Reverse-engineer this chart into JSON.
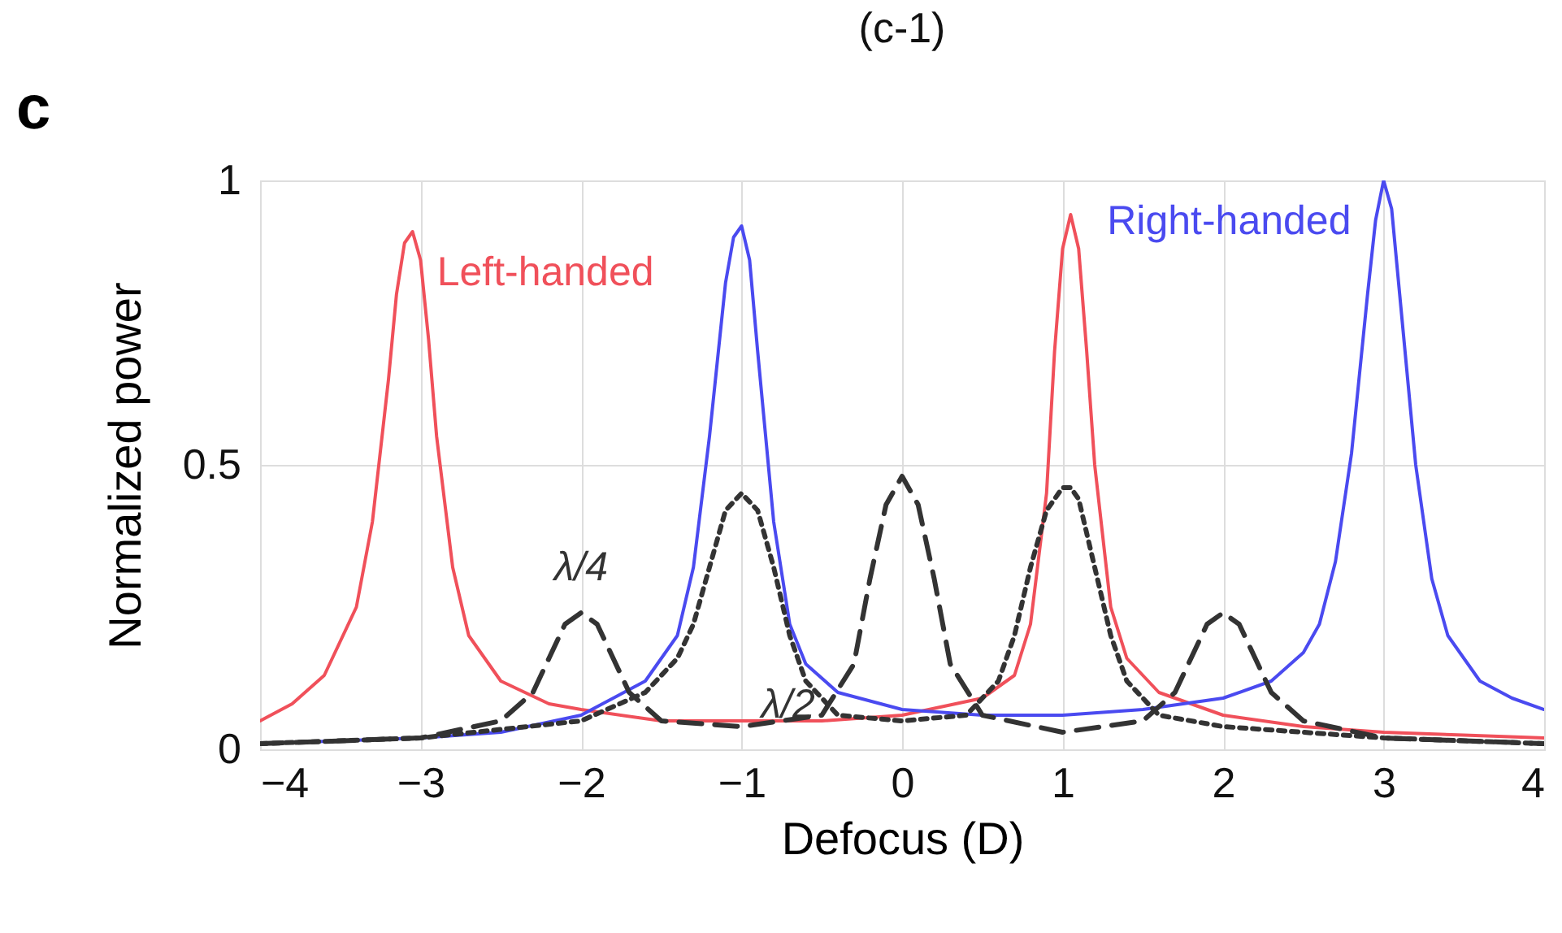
{
  "chart_data": {
    "type": "line",
    "title": "(c-1)",
    "xlabel": "Defocus (D)",
    "ylabel": "Normalized power",
    "annotations": [
      "c"
    ],
    "xlim": [
      -4,
      4
    ],
    "xticks": [
      -4,
      -3,
      -2,
      -1,
      0,
      1,
      2,
      3,
      4
    ],
    "ylim": [
      0,
      1
    ],
    "yticks": [
      0,
      0.5,
      1
    ],
    "grid": true,
    "series": [
      {
        "name": "Left-handed",
        "color": "#f0505a",
        "line_style": "solid",
        "x": [
          -4,
          -3.8,
          -3.6,
          -3.4,
          -3.3,
          -3.2,
          -3.15,
          -3.1,
          -3.05,
          -3.0,
          -2.95,
          -2.9,
          -2.8,
          -2.7,
          -2.5,
          -2.2,
          -2,
          -1.5,
          -1,
          -0.5,
          0,
          0.5,
          0.7,
          0.8,
          0.9,
          0.95,
          1.0,
          1.05,
          1.1,
          1.15,
          1.2,
          1.3,
          1.4,
          1.6,
          2,
          2.5,
          3,
          3.5,
          4
        ],
        "values": [
          0.05,
          0.08,
          0.13,
          0.25,
          0.4,
          0.65,
          0.8,
          0.89,
          0.91,
          0.86,
          0.72,
          0.55,
          0.32,
          0.2,
          0.12,
          0.08,
          0.07,
          0.05,
          0.05,
          0.05,
          0.06,
          0.09,
          0.13,
          0.22,
          0.45,
          0.7,
          0.88,
          0.94,
          0.88,
          0.7,
          0.5,
          0.25,
          0.16,
          0.1,
          0.06,
          0.04,
          0.03,
          0.025,
          0.02
        ]
      },
      {
        "name": "Right-handed",
        "color": "#4a4af0",
        "line_style": "solid",
        "x": [
          -4,
          -3,
          -2.5,
          -2,
          -1.6,
          -1.4,
          -1.3,
          -1.2,
          -1.1,
          -1.05,
          -1.0,
          -0.95,
          -0.9,
          -0.8,
          -0.7,
          -0.6,
          -0.4,
          0,
          0.5,
          1,
          1.5,
          2,
          2.3,
          2.5,
          2.6,
          2.7,
          2.8,
          2.9,
          2.95,
          3.0,
          3.05,
          3.1,
          3.2,
          3.3,
          3.4,
          3.6,
          3.8,
          4
        ],
        "values": [
          0.01,
          0.02,
          0.03,
          0.06,
          0.12,
          0.2,
          0.32,
          0.55,
          0.82,
          0.9,
          0.92,
          0.86,
          0.7,
          0.4,
          0.22,
          0.15,
          0.1,
          0.07,
          0.06,
          0.06,
          0.07,
          0.09,
          0.12,
          0.17,
          0.22,
          0.33,
          0.52,
          0.8,
          0.93,
          1.0,
          0.95,
          0.8,
          0.5,
          0.3,
          0.2,
          0.12,
          0.09,
          0.07
        ]
      },
      {
        "name": "λ/4",
        "color": "#333333",
        "line_style": "dashed",
        "x": [
          -4,
          -3,
          -2.5,
          -2.3,
          -2.2,
          -2.1,
          -2,
          -1.9,
          -1.8,
          -1.7,
          -1.5,
          -1,
          -0.5,
          -0.3,
          -0.2,
          -0.1,
          0,
          0.1,
          0.2,
          0.3,
          0.5,
          1,
          1.5,
          1.7,
          1.8,
          1.9,
          2,
          2.1,
          2.2,
          2.3,
          2.5,
          3,
          4
        ],
        "values": [
          0.01,
          0.02,
          0.05,
          0.1,
          0.16,
          0.22,
          0.24,
          0.22,
          0.16,
          0.1,
          0.05,
          0.04,
          0.06,
          0.15,
          0.3,
          0.43,
          0.48,
          0.43,
          0.3,
          0.15,
          0.06,
          0.03,
          0.05,
          0.1,
          0.16,
          0.22,
          0.24,
          0.22,
          0.16,
          0.1,
          0.05,
          0.02,
          0.01
        ]
      },
      {
        "name": "λ/2",
        "color": "#333333",
        "line_style": "dotted",
        "x": [
          -4,
          -3,
          -2,
          -1.6,
          -1.4,
          -1.3,
          -1.2,
          -1.1,
          -1,
          -0.9,
          -0.8,
          -0.7,
          -0.6,
          -0.4,
          0,
          0.4,
          0.6,
          0.7,
          0.8,
          0.9,
          1.0,
          1.05,
          1.1,
          1.2,
          1.3,
          1.4,
          1.6,
          2,
          3,
          4
        ],
        "values": [
          0.01,
          0.02,
          0.05,
          0.1,
          0.16,
          0.22,
          0.32,
          0.42,
          0.45,
          0.42,
          0.32,
          0.2,
          0.12,
          0.06,
          0.05,
          0.06,
          0.12,
          0.2,
          0.32,
          0.42,
          0.46,
          0.46,
          0.44,
          0.32,
          0.2,
          0.12,
          0.06,
          0.04,
          0.02,
          0.01
        ]
      }
    ]
  }
}
